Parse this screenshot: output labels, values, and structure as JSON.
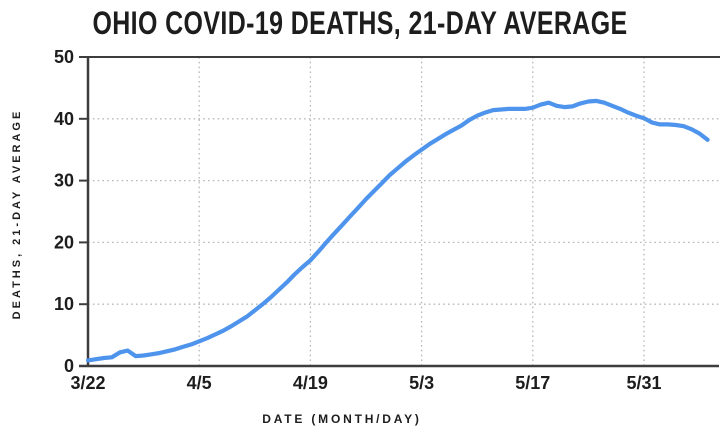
{
  "title_block": {
    "title": "OHIO COVID-19 DEATHS, 21-DAY AVERAGE"
  },
  "style": {
    "background": "#ffffff",
    "line_color": "#4e94ec",
    "axis_color": "#3d3d3d",
    "grid_color": "#b8b8b8",
    "text_color": "#1d1d1d"
  },
  "chart_data": {
    "type": "line",
    "title": "OHIO COVID-19 DEATHS, 21-DAY AVERAGE",
    "xlabel": "DATE (MONTH/DAY)",
    "ylabel": "DEATHS, 21-DAY AVERAGE",
    "ylim": [
      0,
      50
    ],
    "y_ticks": [
      0,
      10,
      20,
      30,
      40,
      50
    ],
    "x_tick_labels": [
      "3/22",
      "4/5",
      "4/19",
      "5/3",
      "5/17",
      "5/31"
    ],
    "x_tick_day_offsets": [
      0,
      14,
      28,
      42,
      56,
      70
    ],
    "x_range_days": [
      0,
      79
    ],
    "grid": {
      "style": "dotted",
      "horizontal": true,
      "vertical": true
    },
    "legend": "none",
    "series": [
      {
        "name": "deaths-21-day-average",
        "color": "#4e94ec",
        "x": [
          "3/22",
          "3/23",
          "3/24",
          "3/25",
          "3/26",
          "3/27",
          "3/28",
          "3/29",
          "3/30",
          "3/31",
          "4/1",
          "4/2",
          "4/3",
          "4/4",
          "4/5",
          "4/6",
          "4/7",
          "4/8",
          "4/9",
          "4/10",
          "4/11",
          "4/12",
          "4/13",
          "4/14",
          "4/15",
          "4/16",
          "4/17",
          "4/18",
          "4/19",
          "4/20",
          "4/21",
          "4/22",
          "4/23",
          "4/24",
          "4/25",
          "4/26",
          "4/27",
          "4/28",
          "4/29",
          "4/30",
          "5/1",
          "5/2",
          "5/3",
          "5/4",
          "5/5",
          "5/6",
          "5/7",
          "5/8",
          "5/9",
          "5/10",
          "5/11",
          "5/12",
          "5/13",
          "5/14",
          "5/15",
          "5/16",
          "5/17",
          "5/18",
          "5/19",
          "5/20",
          "5/21",
          "5/22",
          "5/23",
          "5/24",
          "5/25",
          "5/26",
          "5/27",
          "5/28",
          "5/29",
          "5/30",
          "5/31",
          "6/1",
          "6/2",
          "6/3",
          "6/4",
          "6/5",
          "6/6",
          "6/7",
          "6/8"
        ],
        "values": [
          0.9,
          1.1,
          1.3,
          1.4,
          2.2,
          2.5,
          1.6,
          1.7,
          1.9,
          2.1,
          2.4,
          2.7,
          3.1,
          3.5,
          4.0,
          4.5,
          5.1,
          5.7,
          6.4,
          7.2,
          8.0,
          9.0,
          10.0,
          11.1,
          12.3,
          13.5,
          14.8,
          16.0,
          17.1,
          18.5,
          20.0,
          21.4,
          22.8,
          24.2,
          25.6,
          27.0,
          28.3,
          29.6,
          30.9,
          32.0,
          33.1,
          34.1,
          35.0,
          35.9,
          36.7,
          37.5,
          38.2,
          38.9,
          39.8,
          40.5,
          41.0,
          41.4,
          41.5,
          41.6,
          41.6,
          41.6,
          41.8,
          42.3,
          42.6,
          42.1,
          41.9,
          42.0,
          42.5,
          42.8,
          42.9,
          42.6,
          42.1,
          41.6,
          41.0,
          40.5,
          40.1,
          39.4,
          39.1,
          39.1,
          39.0,
          38.8,
          38.3,
          37.6,
          36.6
        ]
      }
    ]
  }
}
